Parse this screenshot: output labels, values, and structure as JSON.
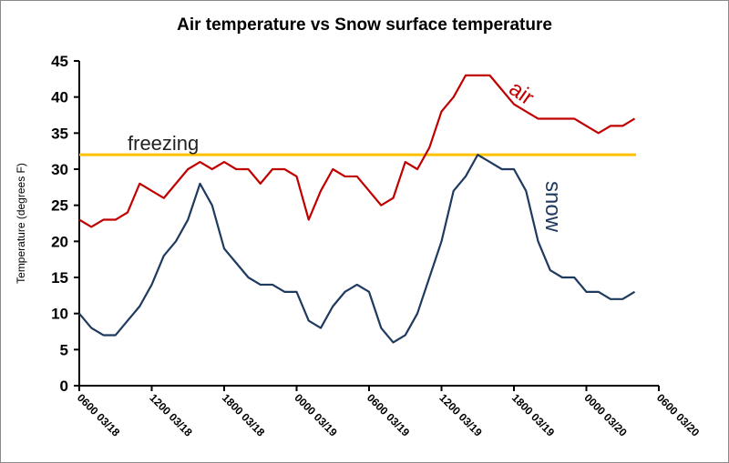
{
  "chart_data": {
    "type": "line",
    "title": "Air temperature vs Snow surface temperature",
    "xlabel": "",
    "ylabel": "Temperature (degrees F)",
    "ylim": [
      0,
      45
    ],
    "yticks": [
      0,
      5,
      10,
      15,
      20,
      25,
      30,
      35,
      40,
      45
    ],
    "xlim_hours": [
      0,
      48
    ],
    "xtick_labels": [
      "0600 03/18",
      "1200 03/18",
      "1800 03/18",
      "0000 03/19",
      "0600 03/19",
      "1200 03/19",
      "1800 03/19",
      "0000 03/20",
      "0600 03/20"
    ],
    "x_hours": [
      0,
      1,
      2,
      3,
      4,
      5,
      6,
      7,
      8,
      9,
      10,
      11,
      12,
      13,
      14,
      15,
      16,
      17,
      18,
      19,
      20,
      21,
      22,
      23,
      24,
      25,
      26,
      27,
      28,
      29,
      30,
      31,
      32,
      33,
      34,
      35,
      36,
      37,
      38,
      39,
      40,
      41,
      42,
      43,
      44,
      45,
      46
    ],
    "grid": false,
    "series": [
      {
        "name": "air",
        "color": "#c00000",
        "values": [
          23,
          22,
          23,
          23,
          24,
          28,
          27,
          26,
          28,
          30,
          31,
          30,
          31,
          30,
          30,
          28,
          30,
          30,
          29,
          23,
          27,
          30,
          29,
          29,
          27,
          25,
          26,
          31,
          30,
          33,
          38,
          40,
          43,
          43,
          43,
          41,
          39,
          38,
          37,
          37,
          37,
          37,
          36,
          35,
          36,
          36,
          37
        ]
      },
      {
        "name": "snow",
        "color": "#1f3a5f",
        "values": [
          10,
          8,
          7,
          7,
          9,
          11,
          14,
          18,
          20,
          23,
          28,
          25,
          19,
          17,
          15,
          14,
          14,
          13,
          13,
          9,
          8,
          11,
          13,
          14,
          13,
          8,
          6,
          7,
          10,
          15,
          20,
          27,
          29,
          32,
          31,
          30,
          30,
          27,
          20,
          16,
          15,
          15,
          13,
          13,
          12,
          12,
          13
        ]
      }
    ],
    "reference_line": {
      "name": "freezing",
      "value": 32,
      "color": "#ffc000"
    }
  }
}
